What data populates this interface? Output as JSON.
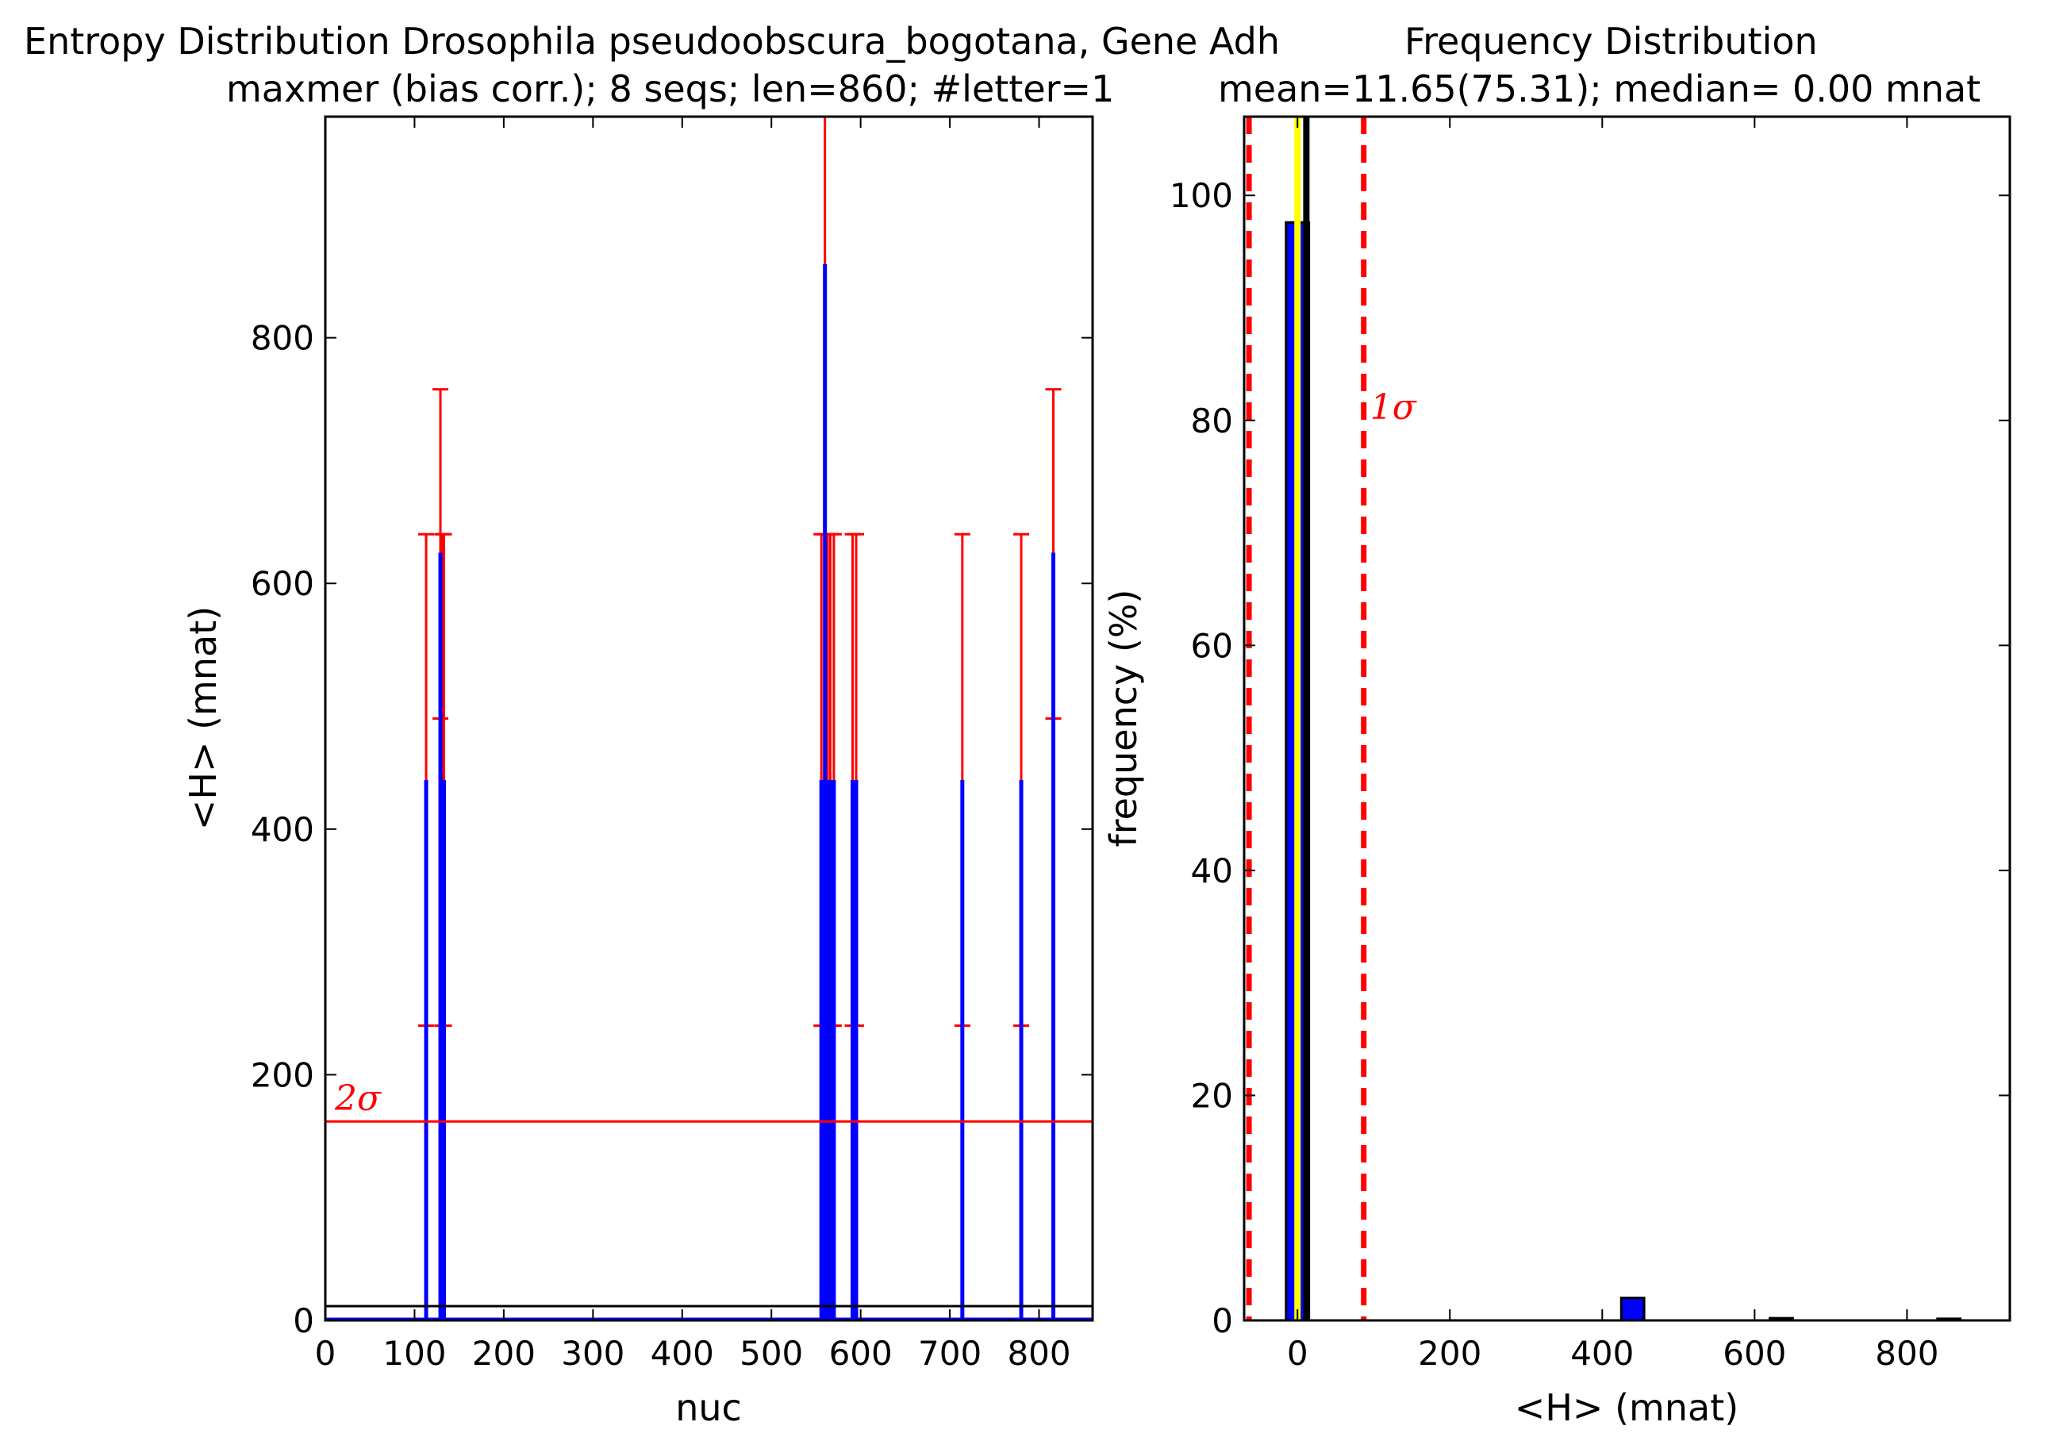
{
  "chart_data": [
    {
      "type": "bar",
      "title": "Entropy Distribution Drosophila pseudoobscura_bogotana, Gene Adh",
      "subtitle": "maxmer (bias corr.); 8 seqs; len=860; #letter=1",
      "xlabel": "nuc",
      "ylabel": "<H> (mnat)",
      "xlim": [
        0,
        860
      ],
      "ylim": [
        0,
        980
      ],
      "xticks": [
        "0",
        "100",
        "200",
        "300",
        "400",
        "500",
        "600",
        "700",
        "800"
      ],
      "yticks": [
        "0",
        "200",
        "400",
        "600",
        "800"
      ],
      "grid": false,
      "bar_color": "#0000ff",
      "errorbar_color": "#ff0000",
      "mean_line": 11.65,
      "sigma_line": {
        "value": 162,
        "label": "2σ"
      },
      "positions": [
        113,
        129,
        131,
        133,
        556,
        560,
        563,
        566,
        570,
        591,
        595,
        714,
        780,
        816
      ],
      "values": [
        440,
        625,
        440,
        440,
        440,
        860,
        440,
        440,
        440,
        440,
        440,
        440,
        440,
        625
      ],
      "error_low": [
        240,
        490,
        240,
        240,
        240,
        640,
        240,
        240,
        240,
        240,
        240,
        240,
        240,
        490
      ],
      "error_high": [
        640,
        758,
        640,
        640,
        640,
        1080,
        640,
        640,
        640,
        640,
        640,
        640,
        640,
        758
      ]
    },
    {
      "type": "bar",
      "title": "Frequency Distribution",
      "subtitle": "mean=11.65(75.31); median= 0.00 mnat",
      "xlabel": "<H> (mnat)",
      "ylabel": "frequency (%)",
      "xlim": [
        -70,
        935
      ],
      "ylim": [
        0,
        107
      ],
      "xticks": [
        "0",
        "200",
        "400",
        "600",
        "800"
      ],
      "yticks": [
        "0",
        "20",
        "40",
        "60",
        "80",
        "100"
      ],
      "grid": false,
      "bar_color": "#0000ff",
      "bins": [
        {
          "x0": -15,
          "x1": 15,
          "value": 97.6
        },
        {
          "x0": 425,
          "x1": 455,
          "value": 2.0
        },
        {
          "x0": 620,
          "x1": 650,
          "value": 0.2
        },
        {
          "x0": 840,
          "x1": 870,
          "value": 0.15
        }
      ],
      "mean_line": 11.65,
      "median_line": 0.0,
      "sigma_lines": [
        -63.66,
        86.96
      ],
      "sigma_label": "1σ"
    }
  ]
}
